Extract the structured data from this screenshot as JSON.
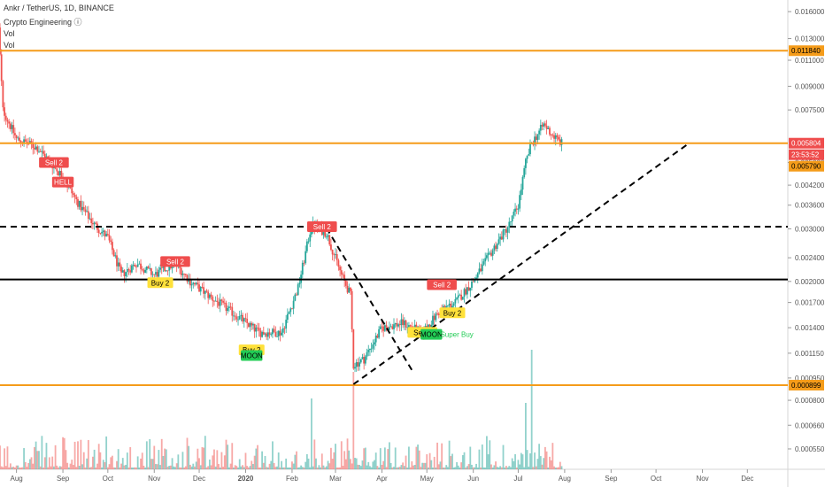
{
  "header": {
    "title": "Ankr / TetherUS, 1D, BINANCE",
    "indicator": "Crypto Engineering ⓘ",
    "vol1": "Vol",
    "vol2": "Vol"
  },
  "colors": {
    "up": "#26a69a",
    "down": "#ef5350",
    "orange": "#f59c1a",
    "red_tag": "#ef4d4d",
    "yellow": "#ffe13a",
    "green": "#22cc55"
  },
  "chart_data": {
    "type": "candlestick",
    "y_scale": "log",
    "ylim": [
      0.00047,
      0.0175
    ],
    "y_ticks": [
      "0.016000",
      "0.013000",
      "0.011000",
      "0.009000",
      "0.007500",
      "0.005000",
      "0.004200",
      "0.003600",
      "0.003000",
      "0.002400",
      "0.002000",
      "0.001700",
      "0.001400",
      "0.001150",
      "0.000950",
      "0.000800",
      "0.000660",
      "0.000550"
    ],
    "x_ticks": [
      "Aug",
      "Sep",
      "Oct",
      "Nov",
      "Dec",
      "2020",
      "Feb",
      "Mar",
      "Apr",
      "May",
      "Jun",
      "Jul",
      "Aug",
      "Sep",
      "Oct",
      "Nov",
      "Dec"
    ],
    "price_tags": [
      {
        "label": "0.011840",
        "style": "orange"
      },
      {
        "label": "0.005804",
        "style": "red"
      },
      {
        "label": "23:53:52",
        "style": "red"
      },
      {
        "label": "0.005790",
        "style": "orange"
      },
      {
        "label": "0.000899",
        "style": "orange"
      }
    ],
    "signals": [
      {
        "label": "Sell 2",
        "style": "red",
        "date": "2019-08-26"
      },
      {
        "label": "HELL",
        "style": "red",
        "date": "2019-09-01"
      },
      {
        "label": "Buy 2",
        "style": "yellow",
        "date": "2019-11-05"
      },
      {
        "label": "Sell 2",
        "style": "red",
        "date": "2019-11-15"
      },
      {
        "label": "Buy 2",
        "style": "yellow",
        "date": "2020-01-05"
      },
      {
        "label": "MOON",
        "style": "green",
        "date": "2020-01-05"
      },
      {
        "label": "Sell 2",
        "style": "red",
        "date": "2020-02-21"
      },
      {
        "label": "Sell 2",
        "style": "yellow",
        "date": "2020-04-28"
      },
      {
        "label": "MOON",
        "style": "green",
        "date": "2020-05-04"
      },
      {
        "label": "Super Buy",
        "style": "greentext",
        "date": "2020-05-10"
      },
      {
        "label": "Sell 2",
        "style": "red",
        "date": "2020-05-11"
      },
      {
        "label": "Buy 2",
        "style": "yellow",
        "date": "2020-05-18"
      }
    ],
    "hlines": [
      {
        "price": 0.01184,
        "style": "orange"
      },
      {
        "price": 0.0058,
        "style": "orange"
      },
      {
        "price": 0.00305,
        "style": "dashed"
      },
      {
        "price": 0.00203,
        "style": "solid"
      },
      {
        "price": 0.000899,
        "style": "orange"
      }
    ],
    "trendlines": [
      {
        "from": [
          "2020-02-24",
          0.00302
        ],
        "to": [
          "2020-04-21",
          0.00101
        ],
        "style": "dashed"
      },
      {
        "from": [
          "2020-03-13",
          0.000905
        ],
        "to": [
          "2020-10-23",
          0.0058
        ],
        "style": "dashed"
      }
    ],
    "anchors": [
      [
        "2019-07-20",
        0.014
      ],
      [
        "2019-07-23",
        0.0075
      ],
      [
        "2019-08-01",
        0.006
      ],
      [
        "2019-08-15",
        0.0056
      ],
      [
        "2019-08-30",
        0.0046
      ],
      [
        "2019-09-12",
        0.0036
      ],
      [
        "2019-09-22",
        0.0031
      ],
      [
        "2019-10-01",
        0.0028
      ],
      [
        "2019-10-10",
        0.0021
      ],
      [
        "2019-10-20",
        0.0023
      ],
      [
        "2019-11-01",
        0.0021
      ],
      [
        "2019-11-15",
        0.0023
      ],
      [
        "2019-11-25",
        0.002
      ],
      [
        "2019-12-10",
        0.00175
      ],
      [
        "2019-12-25",
        0.00155
      ],
      [
        "2020-01-10",
        0.00135
      ],
      [
        "2020-01-25",
        0.00135
      ],
      [
        "2020-02-05",
        0.0019
      ],
      [
        "2020-02-14",
        0.0031
      ],
      [
        "2020-02-24",
        0.0029
      ],
      [
        "2020-03-05",
        0.0021
      ],
      [
        "2020-03-11",
        0.0018
      ],
      [
        "2020-03-13",
        0.00105
      ],
      [
        "2020-03-20",
        0.0011
      ],
      [
        "2020-04-01",
        0.0014
      ],
      [
        "2020-04-15",
        0.00145
      ],
      [
        "2020-04-28",
        0.00135
      ],
      [
        "2020-05-10",
        0.0016
      ],
      [
        "2020-05-20",
        0.0017
      ],
      [
        "2020-06-01",
        0.002
      ],
      [
        "2020-06-15",
        0.0026
      ],
      [
        "2020-06-25",
        0.0031
      ],
      [
        "2020-07-01",
        0.0036
      ],
      [
        "2020-07-06",
        0.005
      ],
      [
        "2020-07-10",
        0.0058
      ],
      [
        "2020-07-18",
        0.0067
      ],
      [
        "2020-07-25",
        0.0061
      ],
      [
        "2020-07-30",
        0.0058
      ]
    ]
  }
}
